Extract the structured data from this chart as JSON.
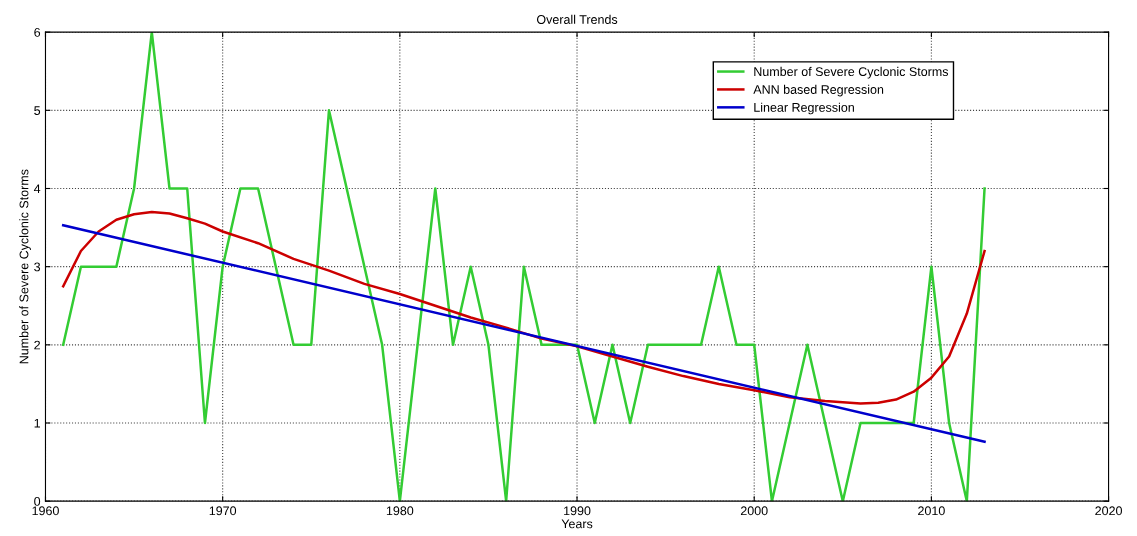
{
  "chart_data": {
    "type": "line",
    "title": "Overall Trends",
    "xlabel": "Years",
    "ylabel": "Number of Severe Cyclonic Storms",
    "series": [
      {
        "name": "Number of Severe Cyclonic Storms",
        "color": "#33cc33",
        "x": [
          1961,
          1962,
          1963,
          1964,
          1965,
          1966,
          1967,
          1968,
          1969,
          1970,
          1971,
          1972,
          1973,
          1974,
          1975,
          1976,
          1977,
          1978,
          1979,
          1980,
          1981,
          1982,
          1983,
          1984,
          1985,
          1986,
          1987,
          1988,
          1989,
          1990,
          1991,
          1992,
          1993,
          1994,
          1995,
          1996,
          1997,
          1998,
          1999,
          2000,
          2001,
          2002,
          2003,
          2004,
          2005,
          2006,
          2007,
          2008,
          2009,
          2010,
          2011,
          2012,
          2013
        ],
        "values": [
          2,
          3,
          3,
          3,
          4,
          6,
          4,
          4,
          1,
          3,
          4,
          4,
          3,
          2,
          2,
          5,
          4,
          3,
          2,
          0,
          2,
          4,
          2,
          3,
          2,
          0,
          3,
          2,
          2,
          2,
          1,
          2,
          1,
          2,
          2,
          2,
          2,
          3,
          2,
          2,
          0,
          1,
          2,
          1,
          0,
          1,
          1,
          1,
          1,
          3,
          1,
          0,
          4
        ]
      },
      {
        "name": "ANN based Regression",
        "color": "#cc0000",
        "x": [
          1961,
          1962,
          1963,
          1964,
          1965,
          1966,
          1967,
          1968,
          1969,
          1970,
          1972,
          1974,
          1976,
          1978,
          1980,
          1982,
          1984,
          1986,
          1988,
          1990,
          1992,
          1994,
          1996,
          1998,
          2000,
          2002,
          2004,
          2006,
          2007,
          2008,
          2009,
          2010,
          2011,
          2012,
          2013
        ],
        "values": [
          2.75,
          3.2,
          3.45,
          3.6,
          3.67,
          3.7,
          3.68,
          3.62,
          3.55,
          3.45,
          3.3,
          3.1,
          2.95,
          2.78,
          2.65,
          2.5,
          2.35,
          2.22,
          2.08,
          1.98,
          1.85,
          1.72,
          1.6,
          1.5,
          1.42,
          1.33,
          1.28,
          1.25,
          1.26,
          1.3,
          1.4,
          1.58,
          1.85,
          2.4,
          3.2
        ]
      },
      {
        "name": "Linear Regression",
        "color": "#0000cc",
        "x": [
          1961,
          2013
        ],
        "values": [
          3.53,
          0.76
        ]
      }
    ],
    "xlim": [
      1960,
      2020
    ],
    "xticks": [
      1960,
      1970,
      1980,
      1990,
      2000,
      2010,
      2020
    ],
    "ylim": [
      0,
      6
    ],
    "yticks": [
      0,
      1,
      2,
      3,
      4,
      5,
      6
    ],
    "grid": true,
    "legend": "top right",
    "line_style": "solid",
    "marker": "none"
  }
}
